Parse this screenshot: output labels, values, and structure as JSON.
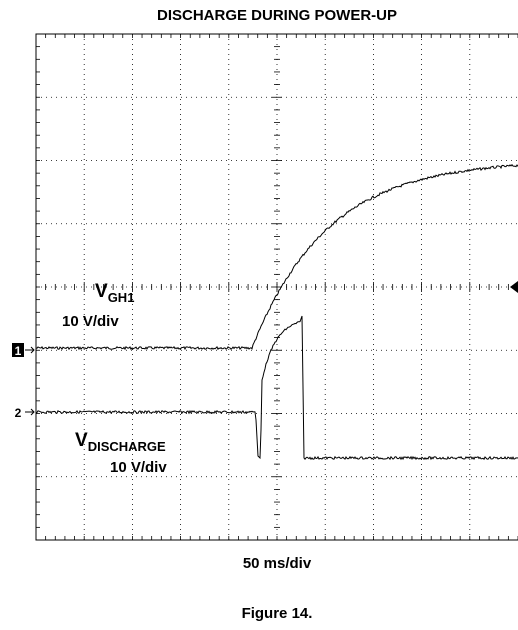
{
  "title": "DISCHARGE DURING POWER-UP",
  "channels": [
    {
      "marker": "1",
      "name": "V",
      "subscript": "GH1",
      "scale": "10 V/div"
    },
    {
      "marker": "2",
      "name": "V",
      "subscript": "DISCHARGE",
      "scale": "10 V/div"
    }
  ],
  "timebase": "50 ms/div",
  "caption": "Figure 14."
}
